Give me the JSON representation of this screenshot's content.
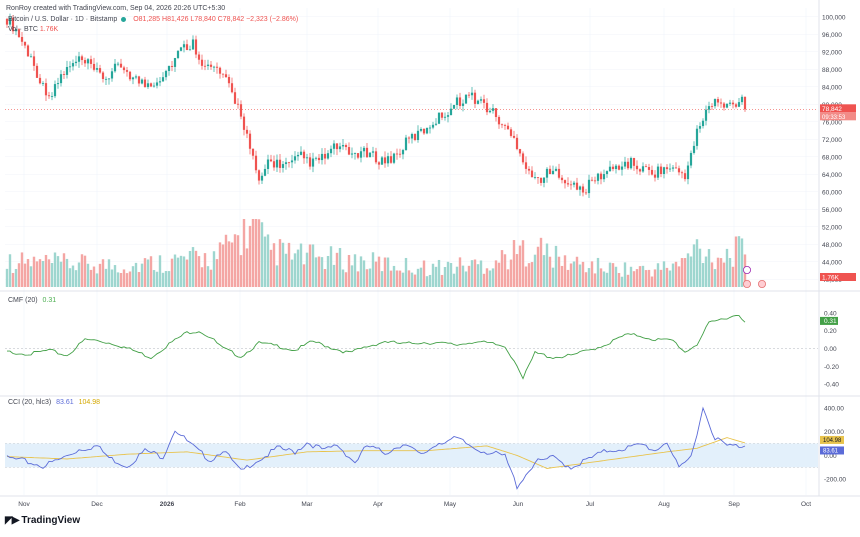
{
  "header": {
    "credit": "RonRoy created with TradingView.com, Sep 04, 2026 20:26 UTC+5:30"
  },
  "legend": {
    "symbol": "Bitcoin / U.S. Dollar · 1D · Bitstamp",
    "ohlc": "O81,285 H81,426 L78,840 C78,842 −2,323 (−2.86%)",
    "volume_label": "Vol · BTC",
    "volume_value": "1.76K"
  },
  "panes": {
    "cmf": {
      "label": "CMF (20)",
      "value": "0.31"
    },
    "cci": {
      "label": "CCI (20, hlc3)",
      "value_cci": "83.61",
      "value_ma": "104.98"
    }
  },
  "branding": {
    "name": "TradingView"
  },
  "colors": {
    "up": "#26a69a",
    "down": "#ef5350",
    "vol_up": "#9ed6cf",
    "vol_down": "#f4a6a4",
    "cmf": "#43a047",
    "cci": "#5b6bd8",
    "cci_ma": "#e8c34d",
    "band": "#e3f0fb",
    "grid": "#f0f3fa",
    "axis_text": "#434651"
  },
  "chart_data": {
    "type": "candlestick",
    "price_axis": {
      "ticks": [
        "100,000",
        "96,000",
        "92,000",
        "88,000",
        "84,000",
        "80,000",
        "76,000",
        "72,000",
        "68,000",
        "64,000",
        "60,000",
        "56,000",
        "52,000",
        "48,000",
        "44,000",
        "40,000"
      ],
      "range": [
        38000,
        102000
      ],
      "last_price_label": "78,842",
      "countdown_label": "09:33:53"
    },
    "time_axis": {
      "ticks": [
        "Nov",
        "Dec",
        "2026",
        "Feb",
        "Mar",
        "Apr",
        "May",
        "Jun",
        "Jul",
        "Aug",
        "Sep",
        "Oct"
      ]
    },
    "volume_axis": {
      "last_label": "1.76K"
    },
    "cmf_axis": {
      "ticks": [
        "0.40",
        "0.20",
        "0.00",
        "-0.20",
        "-0.40"
      ],
      "range": [
        -0.5,
        0.5
      ],
      "last_label": "0.31"
    },
    "cci_axis": {
      "ticks": [
        "400.00",
        "200.00",
        "0.00",
        "-200.00"
      ],
      "band": [
        -100,
        100
      ],
      "range": [
        -300,
        450
      ],
      "last_cci_label": "83.61",
      "last_ma_label": "104.98"
    },
    "price_anchors": [
      [
        0,
        99500
      ],
      [
        3,
        97000
      ],
      [
        8,
        90500
      ],
      [
        12,
        84000
      ],
      [
        15,
        82000
      ],
      [
        18,
        86500
      ],
      [
        21,
        88500
      ],
      [
        24,
        90000
      ],
      [
        27,
        89000
      ],
      [
        30,
        87000
      ],
      [
        33,
        86000
      ],
      [
        36,
        88000
      ],
      [
        39,
        88500
      ],
      [
        42,
        86000
      ],
      [
        46,
        84500
      ],
      [
        50,
        85500
      ],
      [
        54,
        88500
      ],
      [
        58,
        92500
      ],
      [
        62,
        94000
      ],
      [
        66,
        88500
      ],
      [
        70,
        88000
      ],
      [
        74,
        84000
      ],
      [
        78,
        78000
      ],
      [
        81,
        70000
      ],
      [
        84,
        61500
      ],
      [
        87,
        67000
      ],
      [
        90,
        66500
      ],
      [
        94,
        66000
      ],
      [
        98,
        68000
      ],
      [
        102,
        66500
      ],
      [
        106,
        68000
      ],
      [
        110,
        70500
      ],
      [
        114,
        68500
      ],
      [
        118,
        69000
      ],
      [
        122,
        68000
      ],
      [
        126,
        67000
      ],
      [
        130,
        68500
      ],
      [
        134,
        72000
      ],
      [
        138,
        73500
      ],
      [
        142,
        76000
      ],
      [
        146,
        78000
      ],
      [
        150,
        80500
      ],
      [
        154,
        82000
      ],
      [
        158,
        80500
      ],
      [
        162,
        78000
      ],
      [
        166,
        74500
      ],
      [
        170,
        71000
      ],
      [
        173,
        66000
      ],
      [
        176,
        62500
      ],
      [
        180,
        64000
      ],
      [
        184,
        64500
      ],
      [
        188,
        61500
      ],
      [
        192,
        60000
      ],
      [
        196,
        63000
      ],
      [
        200,
        64500
      ],
      [
        204,
        66000
      ],
      [
        208,
        66500
      ],
      [
        212,
        65000
      ],
      [
        216,
        64500
      ],
      [
        220,
        65500
      ],
      [
        224,
        64500
      ],
      [
        226,
        64000
      ],
      [
        228,
        68000
      ],
      [
        230,
        73500
      ],
      [
        233,
        78500
      ],
      [
        236,
        80500
      ],
      [
        239,
        79500
      ],
      [
        242,
        80000
      ],
      [
        245,
        81300
      ],
      [
        246,
        78842
      ]
    ],
    "volume_anchors": [
      [
        0,
        1.2
      ],
      [
        20,
        1.1
      ],
      [
        40,
        1.0
      ],
      [
        60,
        1.3
      ],
      [
        70,
        1.4
      ],
      [
        76,
        2.2
      ],
      [
        81,
        2.8
      ],
      [
        83,
        3.0
      ],
      [
        86,
        1.8
      ],
      [
        95,
        1.5
      ],
      [
        110,
        1.3
      ],
      [
        140,
        0.9
      ],
      [
        160,
        1.1
      ],
      [
        170,
        1.6
      ],
      [
        176,
        1.9
      ],
      [
        185,
        1.2
      ],
      [
        200,
        0.9
      ],
      [
        215,
        0.8
      ],
      [
        225,
        1.1
      ],
      [
        230,
        1.9
      ],
      [
        236,
        1.4
      ],
      [
        246,
        1.76
      ]
    ],
    "cmf_anchors": [
      [
        0,
        -0.04
      ],
      [
        8,
        -0.06
      ],
      [
        14,
        -0.02
      ],
      [
        20,
        -0.08
      ],
      [
        26,
        0.1
      ],
      [
        30,
        0.09
      ],
      [
        36,
        0.05
      ],
      [
        42,
        -0.02
      ],
      [
        48,
        -0.1
      ],
      [
        54,
        0.05
      ],
      [
        60,
        0.18
      ],
      [
        64,
        0.2
      ],
      [
        68,
        0.12
      ],
      [
        72,
        0.0
      ],
      [
        78,
        -0.09
      ],
      [
        84,
        0.06
      ],
      [
        90,
        0.03
      ],
      [
        96,
        -0.02
      ],
      [
        102,
        0.08
      ],
      [
        108,
        0.01
      ],
      [
        114,
        -0.05
      ],
      [
        120,
        0.02
      ],
      [
        126,
        0.08
      ],
      [
        132,
        0.05
      ],
      [
        138,
        0.07
      ],
      [
        144,
        0.06
      ],
      [
        150,
        0.04
      ],
      [
        156,
        0.08
      ],
      [
        162,
        0.05
      ],
      [
        166,
        0.02
      ],
      [
        170,
        -0.18
      ],
      [
        172,
        -0.34
      ],
      [
        176,
        -0.05
      ],
      [
        182,
        -0.1
      ],
      [
        188,
        -0.08
      ],
      [
        194,
        -0.02
      ],
      [
        200,
        0.05
      ],
      [
        206,
        0.15
      ],
      [
        210,
        0.15
      ],
      [
        216,
        0.1
      ],
      [
        222,
        0.09
      ],
      [
        226,
        -0.04
      ],
      [
        230,
        0.05
      ],
      [
        234,
        0.28
      ],
      [
        240,
        0.35
      ],
      [
        244,
        0.38
      ],
      [
        246,
        0.31
      ]
    ],
    "cci_anchors": [
      [
        0,
        -20
      ],
      [
        6,
        -50
      ],
      [
        12,
        -90
      ],
      [
        18,
        -30
      ],
      [
        24,
        50
      ],
      [
        30,
        80
      ],
      [
        34,
        -20
      ],
      [
        40,
        -90
      ],
      [
        46,
        40
      ],
      [
        52,
        -10
      ],
      [
        56,
        220
      ],
      [
        60,
        120
      ],
      [
        64,
        30
      ],
      [
        68,
        -40
      ],
      [
        72,
        50
      ],
      [
        78,
        -140
      ],
      [
        82,
        -60
      ],
      [
        86,
        -10
      ],
      [
        90,
        60
      ],
      [
        96,
        30
      ],
      [
        100,
        110
      ],
      [
        106,
        40
      ],
      [
        110,
        90
      ],
      [
        116,
        -60
      ],
      [
        120,
        80
      ],
      [
        126,
        20
      ],
      [
        132,
        100
      ],
      [
        138,
        0
      ],
      [
        144,
        110
      ],
      [
        150,
        140
      ],
      [
        156,
        60
      ],
      [
        160,
        30
      ],
      [
        166,
        -10
      ],
      [
        170,
        -260
      ],
      [
        176,
        -60
      ],
      [
        182,
        -20
      ],
      [
        188,
        -100
      ],
      [
        194,
        -30
      ],
      [
        200,
        40
      ],
      [
        206,
        60
      ],
      [
        212,
        90
      ],
      [
        216,
        40
      ],
      [
        220,
        120
      ],
      [
        224,
        -120
      ],
      [
        228,
        -10
      ],
      [
        232,
        400
      ],
      [
        236,
        150
      ],
      [
        240,
        80
      ],
      [
        244,
        80
      ],
      [
        246,
        83.61
      ]
    ],
    "cci_ma_anchors": [
      [
        0,
        -10
      ],
      [
        20,
        -30
      ],
      [
        40,
        10
      ],
      [
        60,
        30
      ],
      [
        80,
        -40
      ],
      [
        100,
        30
      ],
      [
        120,
        40
      ],
      [
        140,
        40
      ],
      [
        160,
        80
      ],
      [
        170,
        0
      ],
      [
        180,
        -110
      ],
      [
        200,
        -40
      ],
      [
        220,
        30
      ],
      [
        230,
        60
      ],
      [
        240,
        150
      ],
      [
        246,
        104.98
      ]
    ]
  }
}
